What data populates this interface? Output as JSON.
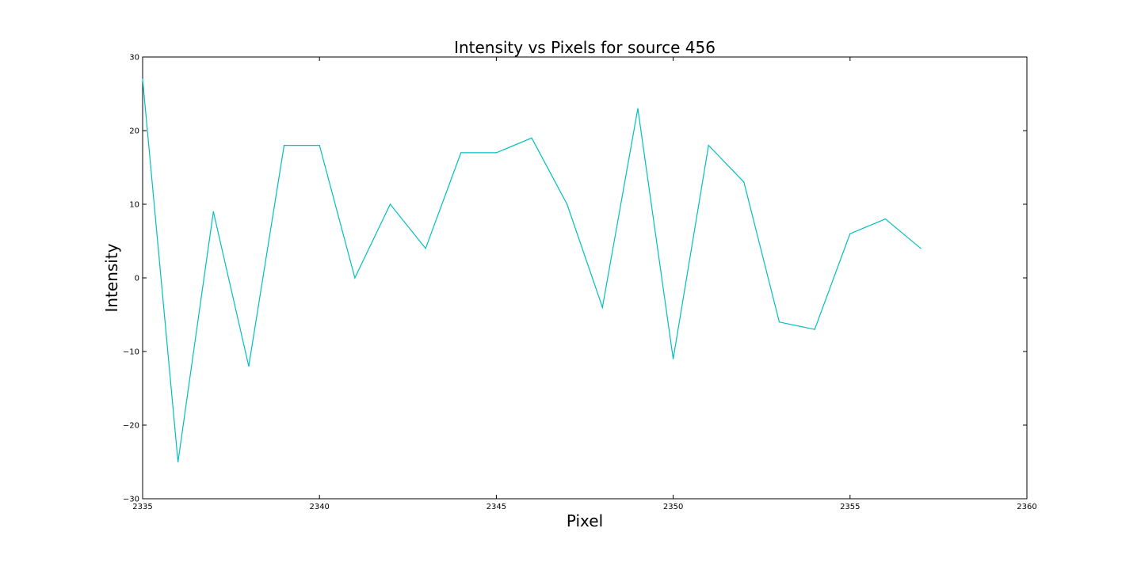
{
  "chart_data": {
    "type": "line",
    "title": "Intensity vs Pixels for source 456",
    "xlabel": "Pixel",
    "ylabel": "Intensity",
    "xlim": [
      2335,
      2360
    ],
    "ylim": [
      -30,
      30
    ],
    "x_ticks": [
      "2335",
      "2340",
      "2345",
      "2350",
      "2355",
      "2360"
    ],
    "y_ticks": [
      "30",
      "20",
      "10",
      "0",
      "−10",
      "−20",
      "−30"
    ],
    "grid": false,
    "line_color": "#00bfbf",
    "series": [
      {
        "x": [
          2335,
          2336,
          2337,
          2338,
          2339,
          2340,
          2341,
          2342,
          2343,
          2344,
          2345,
          2346,
          2347,
          2348,
          2349,
          2350,
          2351,
          2352,
          2353,
          2354,
          2355,
          2356,
          2357
        ],
        "values": [
          27,
          -25,
          9,
          -12,
          18,
          18,
          0,
          10,
          4,
          17,
          17,
          19,
          10,
          -4,
          23,
          -11,
          18,
          13,
          -6,
          -7,
          6,
          8,
          4
        ]
      }
    ]
  }
}
